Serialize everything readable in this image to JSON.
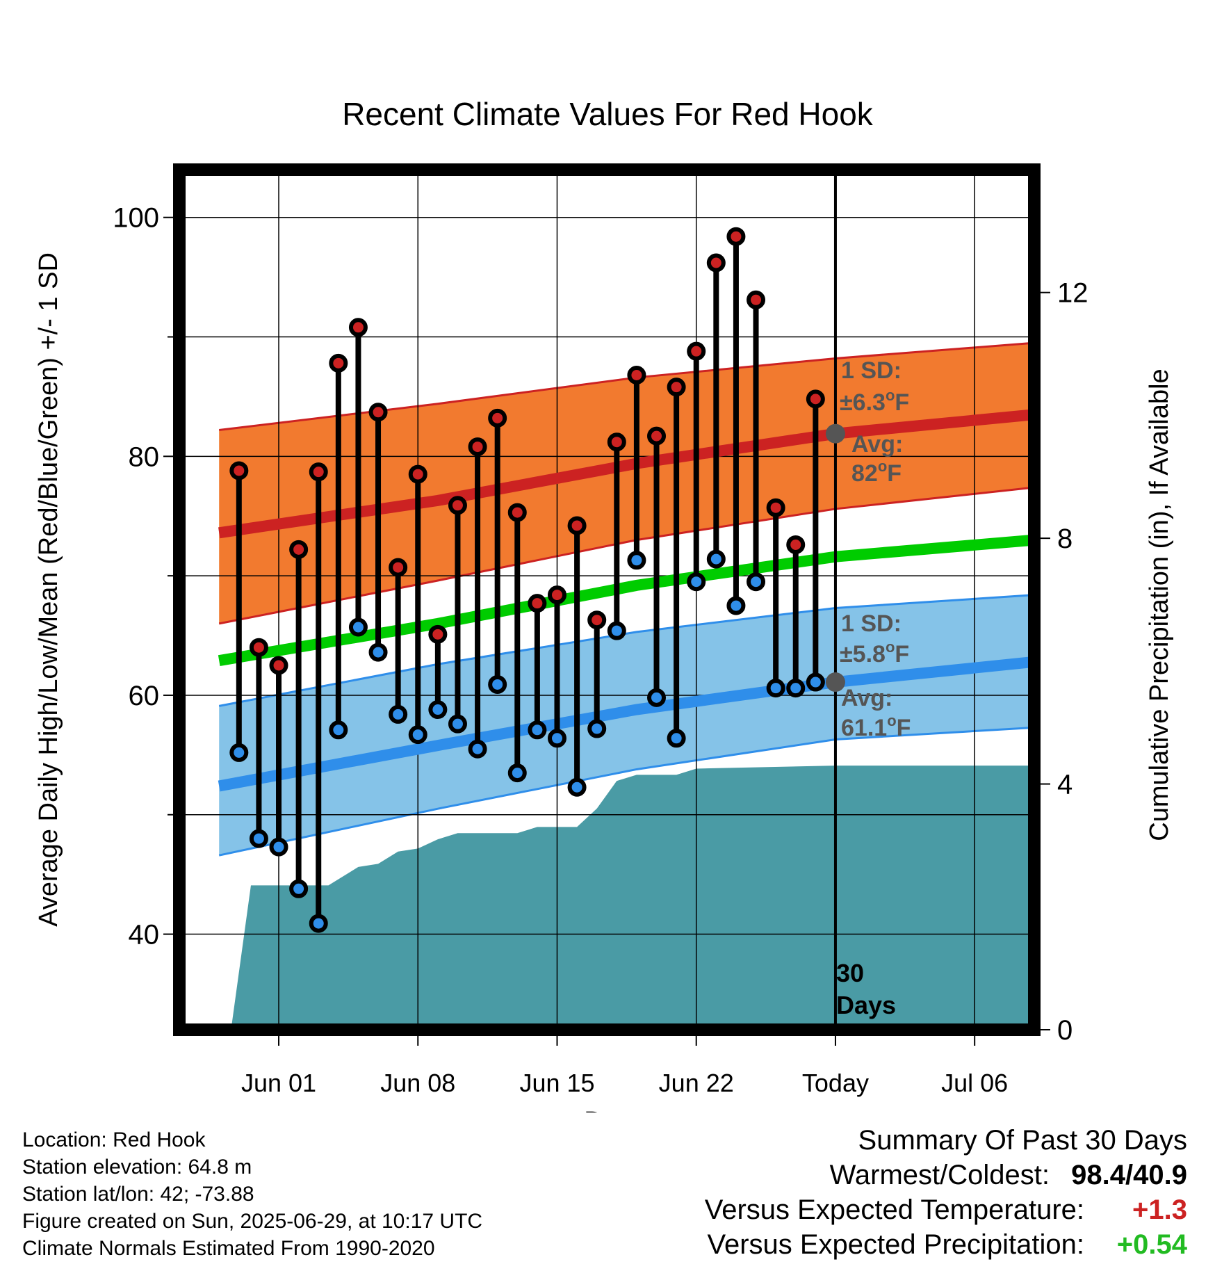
{
  "chart_data": {
    "type": "line",
    "title": "Recent Climate Values For Red Hook",
    "xlabel": "Day",
    "ylabel": "Average Daily High/Low/Mean (Red/Blue/Green) +/- 1 SD",
    "y2label": "Cumulative Precipitation (in), If Available",
    "x_range": [
      "2025-05-27",
      "2025-07-09"
    ],
    "ylim": [
      32,
      104
    ],
    "y2lim": [
      0,
      14
    ],
    "x_ticks": [
      {
        "date": "2025-06-01",
        "label": "Jun 01"
      },
      {
        "date": "2025-06-08",
        "label": "Jun 08"
      },
      {
        "date": "2025-06-15",
        "label": "Jun 15"
      },
      {
        "date": "2025-06-22",
        "label": "Jun 22"
      },
      {
        "date": "2025-06-29",
        "label": "Today"
      },
      {
        "date": "2025-07-06",
        "label": "Jul 06"
      }
    ],
    "y_ticks": [
      40,
      60,
      80,
      100
    ],
    "y_minor_ticks": [
      50,
      70,
      90
    ],
    "y2_ticks": [
      0,
      4,
      8,
      12
    ],
    "grid": true,
    "colors": {
      "high": "#cc2222",
      "low": "#2f8eea",
      "mean": "#00cc00",
      "high_band": "#f27a2f",
      "low_band": "#85c3e8",
      "precip": "#4a9ba5",
      "avg_marker": "#555555",
      "annotation": "#555555"
    },
    "normal_high": {
      "x": [
        "2025-05-29",
        "2025-06-09",
        "2025-06-19",
        "2025-06-29",
        "2025-07-09"
      ],
      "mean": [
        73.6,
        76.3,
        79.4,
        81.9,
        83.5
      ],
      "upper": [
        82.2,
        84.4,
        86.6,
        88.2,
        89.5
      ],
      "lower": [
        66.0,
        69.6,
        73.0,
        75.6,
        77.4
      ]
    },
    "normal_low": {
      "x": [
        "2025-05-29",
        "2025-06-09",
        "2025-06-19",
        "2025-06-29",
        "2025-07-09"
      ],
      "mean": [
        52.4,
        55.8,
        58.8,
        61.1,
        62.8
      ],
      "upper": [
        59.1,
        62.6,
        65.3,
        67.3,
        68.4
      ],
      "lower": [
        46.6,
        50.5,
        53.8,
        56.3,
        57.3
      ]
    },
    "normal_mean": {
      "x": [
        "2025-05-29",
        "2025-06-09",
        "2025-06-19",
        "2025-06-29",
        "2025-07-09"
      ],
      "values": [
        62.9,
        66.0,
        69.2,
        71.6,
        73.0
      ]
    },
    "daily": [
      {
        "date": "2025-05-30",
        "high": 78.8,
        "low": 55.2
      },
      {
        "date": "2025-05-31",
        "high": 64.0,
        "low": 48.0
      },
      {
        "date": "2025-06-01",
        "high": 62.5,
        "low": 47.3
      },
      {
        "date": "2025-06-02",
        "high": 72.2,
        "low": 43.8
      },
      {
        "date": "2025-06-03",
        "high": 78.7,
        "low": 40.9
      },
      {
        "date": "2025-06-04",
        "high": 87.8,
        "low": 57.1
      },
      {
        "date": "2025-06-05",
        "high": 90.8,
        "low": 65.7
      },
      {
        "date": "2025-06-06",
        "high": 83.7,
        "low": 63.6
      },
      {
        "date": "2025-06-07",
        "high": 70.7,
        "low": 58.4
      },
      {
        "date": "2025-06-08",
        "high": 78.5,
        "low": 56.7
      },
      {
        "date": "2025-06-09",
        "high": 65.1,
        "low": 58.8
      },
      {
        "date": "2025-06-10",
        "high": 75.9,
        "low": 57.6
      },
      {
        "date": "2025-06-11",
        "high": 80.8,
        "low": 55.5
      },
      {
        "date": "2025-06-12",
        "high": 83.2,
        "low": 60.9
      },
      {
        "date": "2025-06-13",
        "high": 75.3,
        "low": 53.5
      },
      {
        "date": "2025-06-14",
        "high": 67.7,
        "low": 57.1
      },
      {
        "date": "2025-06-15",
        "high": 68.4,
        "low": 56.4
      },
      {
        "date": "2025-06-16",
        "high": 74.2,
        "low": 52.3
      },
      {
        "date": "2025-06-17",
        "high": 66.3,
        "low": 57.2
      },
      {
        "date": "2025-06-18",
        "high": 81.2,
        "low": 65.4
      },
      {
        "date": "2025-06-19",
        "high": 86.8,
        "low": 71.3
      },
      {
        "date": "2025-06-20",
        "high": 81.7,
        "low": 59.8
      },
      {
        "date": "2025-06-21",
        "high": 85.8,
        "low": 56.4
      },
      {
        "date": "2025-06-22",
        "high": 88.8,
        "low": 69.5
      },
      {
        "date": "2025-06-23",
        "high": 96.2,
        "low": 71.4
      },
      {
        "date": "2025-06-24",
        "high": 98.4,
        "low": 67.5
      },
      {
        "date": "2025-06-25",
        "high": 93.1,
        "low": 69.5
      },
      {
        "date": "2025-06-26",
        "high": 75.7,
        "low": 60.6
      },
      {
        "date": "2025-06-27",
        "high": 72.6,
        "low": 60.6
      },
      {
        "date": "2025-06-28",
        "high": 84.8,
        "low": 61.1
      }
    ],
    "precip": {
      "x": [
        "2025-05-29.6",
        "2025-05-30.6",
        "2025-06-03.5",
        "2025-06-04.5",
        "2025-06-05",
        "2025-06-06",
        "2025-06-07",
        "2025-06-08",
        "2025-06-09",
        "2025-06-10",
        "2025-06-11",
        "2025-06-13",
        "2025-06-14",
        "2025-06-15",
        "2025-06-16",
        "2025-06-17",
        "2025-06-18",
        "2025-06-19",
        "2025-06-21",
        "2025-06-22",
        "2025-06-29",
        "2025-07-09"
      ],
      "values": [
        0.0,
        2.35,
        2.35,
        2.55,
        2.65,
        2.7,
        2.9,
        2.95,
        3.1,
        3.2,
        3.2,
        3.2,
        3.3,
        3.3,
        3.3,
        3.6,
        4.05,
        4.15,
        4.15,
        4.25,
        4.3,
        4.3
      ]
    },
    "annotations": {
      "high_sd_label": "1 SD:",
      "high_sd_value": "±6.3",
      "high_avg_label": "Avg:",
      "high_avg_value": "82",
      "low_sd_label": "1 SD:",
      "low_sd_value": "±5.8",
      "low_avg_label": "Avg:",
      "low_avg_value": "61.1",
      "degree_symbol": "o",
      "unit_letter": "F",
      "days_count": "30",
      "days_word": "Days"
    }
  },
  "footer": {
    "location": "Location: Red Hook",
    "elevation": "Station elevation: 64.8 m",
    "latlon": "Station lat/lon: 42; -73.88",
    "created": "Figure created on Sun, 2025-06-29, at 10:17 UTC",
    "normals": "Climate Normals Estimated From 1990-2020"
  },
  "summary": {
    "title": "Summary Of Past 30 Days",
    "warmest_coldest_label": "Warmest/Coldest:",
    "warmest_coldest_value": "98.4/40.9",
    "temp_label": "Versus Expected Temperature:",
    "temp_value": "+1.3",
    "temp_color": "#cc2222",
    "precip_label": "Versus Expected Precipitation:",
    "precip_value": "+0.54",
    "precip_color": "#22bb22"
  }
}
